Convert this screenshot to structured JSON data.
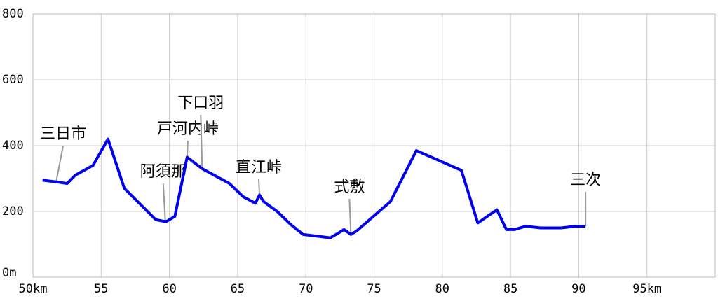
{
  "chart_data": {
    "type": "line",
    "x": [
      50.7,
      51.7,
      52.5,
      53.1,
      54.4,
      55.5,
      56.7,
      59.0,
      59.6,
      59.8,
      60.4,
      61.3,
      62.4,
      64.4,
      65.4,
      66.3,
      66.6,
      66.9,
      67.9,
      68.9,
      69.8,
      71.8,
      72.2,
      72.8,
      73.3,
      73.7,
      76.2,
      78.1,
      81.4,
      82.6,
      84.0,
      84.7,
      85.3,
      86.1,
      87.2,
      88.7,
      89.8,
      90.5
    ],
    "series": [
      {
        "color": "#0000ee",
        "values": [
          295,
          290,
          285,
          310,
          340,
          420,
          270,
          175,
          170,
          170,
          185,
          365,
          330,
          285,
          245,
          225,
          250,
          230,
          200,
          160,
          130,
          120,
          130,
          145,
          130,
          140,
          230,
          385,
          325,
          165,
          205,
          145,
          145,
          155,
          150,
          150,
          155,
          155
        ]
      }
    ],
    "annotations": [
      {
        "text": "三日市",
        "x": 51.7,
        "y": 290
      },
      {
        "text": "阿須那",
        "x": 59.7,
        "y": 170
      },
      {
        "text": "戸河内峠",
        "x": 61.3,
        "y": 365
      },
      {
        "text": "下口羽",
        "x": 62.4,
        "y": 330
      },
      {
        "text": "直江峠",
        "x": 66.6,
        "y": 250
      },
      {
        "text": "式敷",
        "x": 73.3,
        "y": 130
      },
      {
        "text": "三次",
        "x": 90.5,
        "y": 155
      }
    ],
    "xlim": [
      50,
      100
    ],
    "xticks": [
      {
        "value": 50,
        "label": "50km"
      },
      55,
      60,
      65,
      70,
      75,
      80,
      85,
      90,
      {
        "value": 95,
        "label": "95km"
      }
    ],
    "ylim": [
      0,
      800
    ],
    "yticks": [
      {
        "value": 0,
        "label": "0m"
      },
      200,
      400,
      600,
      800
    ],
    "grid": true
  }
}
